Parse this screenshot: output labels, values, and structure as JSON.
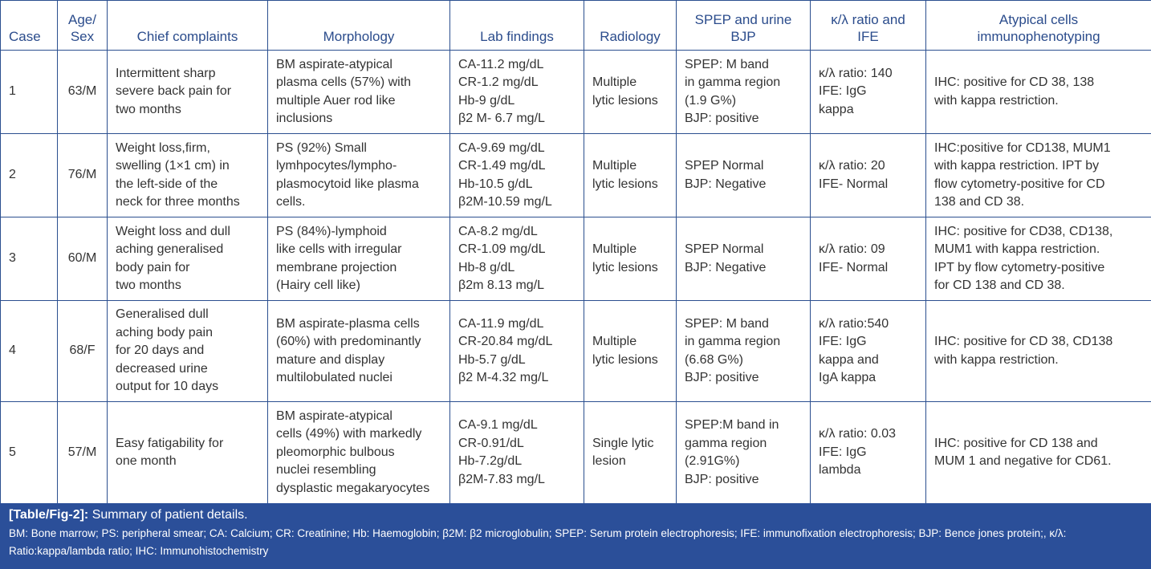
{
  "headers": [
    "Case",
    "Age/\nSex",
    "Chief complaints",
    "Morphology",
    "Lab findings",
    "Radiology",
    "SPEP and urine\nBJP",
    "κ/λ ratio and\nIFE",
    "Atypical cells\nimmunophenotyping"
  ],
  "rows": [
    [
      "1",
      "63/M",
      "Intermittent sharp\nsevere back pain for\ntwo months",
      "BM aspirate-atypical\nplasma cells (57%) with\nmultiple Auer rod like\ninclusions",
      "CA-11.2 mg/dL\nCR-1.2 mg/dL\nHb-9 g/dL\nβ2 M- 6.7 mg/L",
      "Multiple\nlytic lesions",
      "SPEP: M band\nin gamma region\n(1.9 G%)\nBJP: positive",
      "κ/λ ratio: 140\nIFE: IgG\nkappa",
      "IHC: positive for CD 38, 138\nwith kappa restriction."
    ],
    [
      "2",
      "76/M",
      "Weight loss,firm,\nswelling (1×1 cm) in\nthe left-side of the\nneck for three months",
      "PS (92%) Small\nlymhpocytes/lympho-\nplasmocytoid like plasma\ncells.",
      "CA-9.69 mg/dL\nCR-1.49 mg/dL\nHb-10.5 g/dL\nβ2M-10.59 mg/L",
      "Multiple\nlytic lesions",
      "SPEP Normal\nBJP: Negative",
      "κ/λ ratio: 20\nIFE- Normal",
      "IHC:positive for CD138, MUM1\nwith kappa restriction. IPT by\nflow cytometry-positive for CD\n138 and CD 38."
    ],
    [
      "3",
      "60/M",
      "Weight loss and dull\naching generalised\nbody pain for\ntwo months",
      "PS (84%)-lymphoid\nlike cells with irregular\nmembrane projection\n(Hairy cell like)",
      "CA-8.2 mg/dL\nCR-1.09 mg/dL\nHb-8 g/dL\nβ2m 8.13 mg/L",
      "Multiple\nlytic lesions",
      "SPEP Normal\nBJP: Negative",
      "κ/λ ratio: 09\nIFE- Normal",
      "IHC: positive for CD38, CD138,\nMUM1 with kappa restriction.\nIPT by flow cytometry-positive\nfor CD 138 and CD 38."
    ],
    [
      "4",
      "68/F",
      "Generalised dull\naching body pain\nfor 20 days and\ndecreased urine\noutput for 10 days",
      "BM aspirate-plasma cells\n(60%) with predominantly\nmature and display\nmultilobulated nuclei",
      "CA-11.9 mg/dL\nCR-20.84 mg/dL\nHb-5.7 g/dL\nβ2 M-4.32 mg/L",
      "Multiple\nlytic lesions",
      "SPEP: M band\nin gamma region\n(6.68 G%)\nBJP: positive",
      "κ/λ ratio:540\nIFE: IgG\nkappa and\nIgA kappa",
      "IHC: positive for CD 38, CD138\nwith kappa restriction."
    ],
    [
      "5",
      "57/M",
      "Easy fatigability for\none month",
      "BM aspirate-atypical\ncells (49%) with markedly\npleomorphic bulbous\nnuclei resembling\ndysplastic megakaryocytes",
      "CA-9.1 mg/dL\nCR-0.91/dL\nHb-7.2g/dL\nβ2M-7.83 mg/L",
      "Single lytic\nlesion",
      "SPEP:M band in\ngamma region\n(2.91G%)\nBJP: positive",
      "κ/λ ratio: 0.03\nIFE: IgG\nlambda",
      "IHC: positive for CD 138 and\nMUM 1 and negative for CD61."
    ]
  ],
  "caption": {
    "label": "[Table/Fig-2]:",
    "title": " Summary of patient details.",
    "notes": "BM: Bone marrow; PS: peripheral smear; CA: Calcium; CR: Creatinine; Hb: Haemoglobin; β2M: β2 microglobulin; SPEP: Serum protein electrophoresis; IFE: immunofixation electrophoresis; BJP: Bence jones protein;, κ/λ: Ratio:kappa/lambda ratio; IHC: Immunohistochemistry"
  }
}
